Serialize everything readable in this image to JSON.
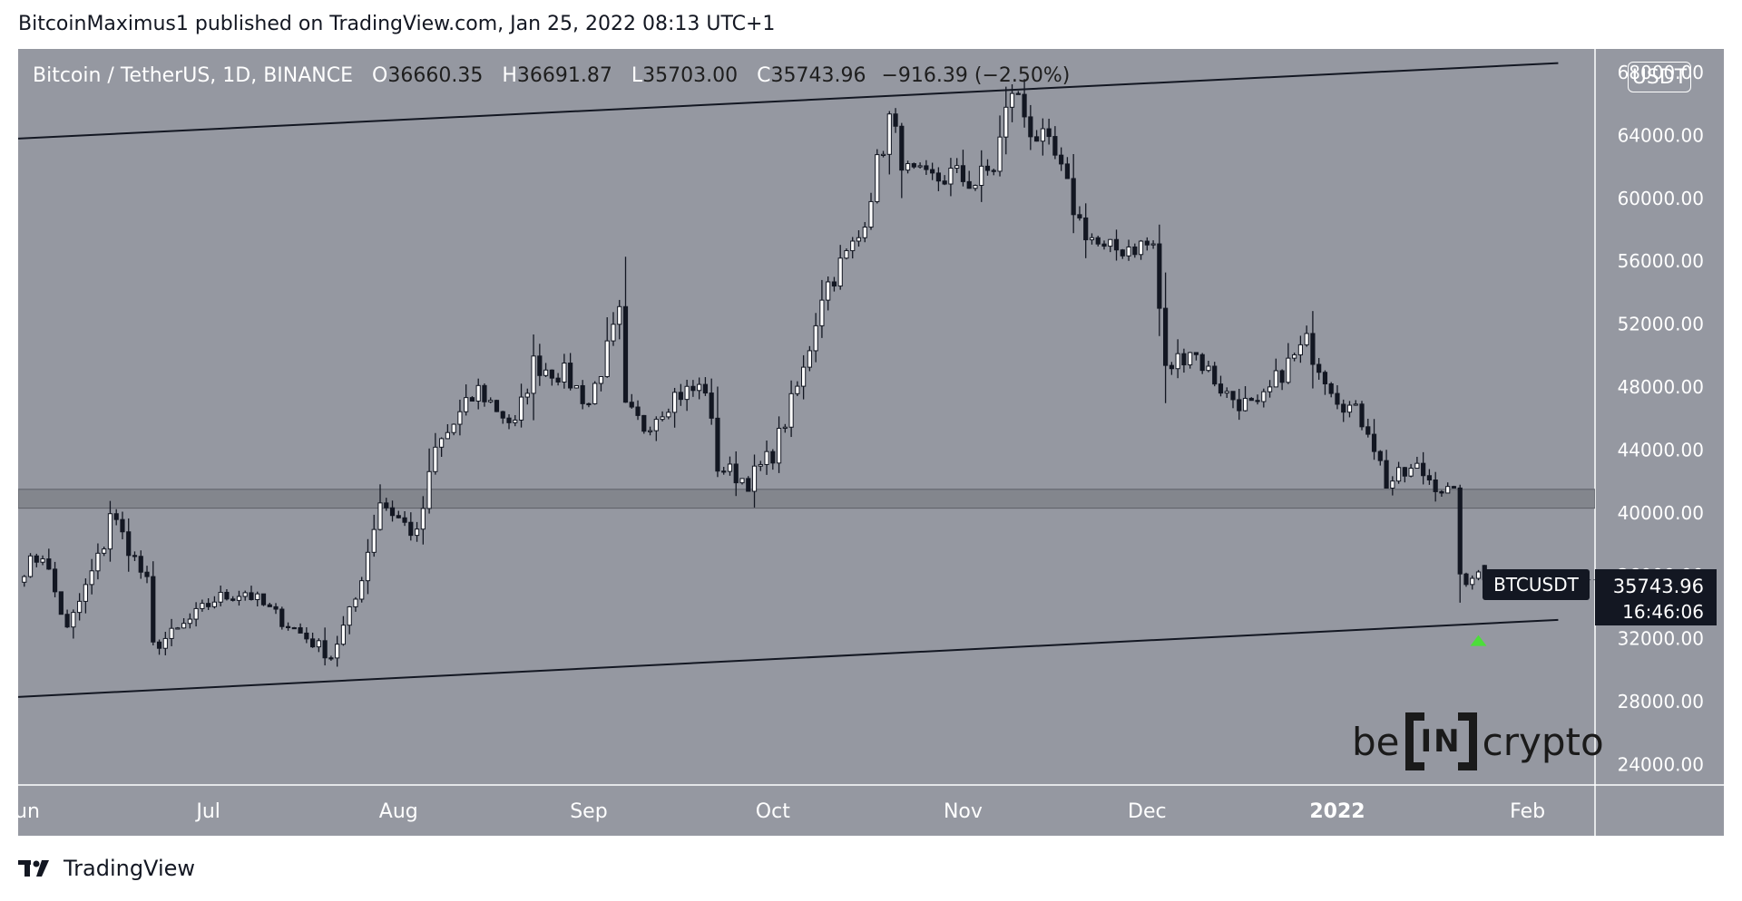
{
  "header": {
    "published_text": "BitcoinMaximus1 published on TradingView.com, Jan 25, 2022 08:13 UTC+1"
  },
  "legend": {
    "symbol_text": "Bitcoin / TetherUS, 1D, BINANCE",
    "open_label": "O",
    "open": "36660.35",
    "high_label": "H",
    "high": "36691.87",
    "low_label": "L",
    "low": "35703.00",
    "close_label": "C",
    "close": "35743.96",
    "change": "−916.39 (−2.50%)"
  },
  "currency_badge": "USDT",
  "price_tag": {
    "symbol": "BTCUSDT",
    "price": "35743.96",
    "countdown": "16:46:06"
  },
  "watermark": {
    "left": "be",
    "middle": "IN",
    "right": "crypto"
  },
  "footer": {
    "brand": "TradingView"
  },
  "colors": {
    "chart_bg": "#9598a1",
    "up_candle": "#ffffff",
    "down_candle": "#131722",
    "marker": "#4cde3a",
    "support_zone": "#808289"
  },
  "chart_data": {
    "type": "candlestick",
    "title": "Bitcoin / TetherUS, 1D, BINANCE",
    "x_ticks": [
      {
        "label": "Jun",
        "date": "2021-06-01"
      },
      {
        "label": "Jul",
        "date": "2021-07-01"
      },
      {
        "label": "Aug",
        "date": "2021-08-01"
      },
      {
        "label": "Sep",
        "date": "2021-09-01"
      },
      {
        "label": "Oct",
        "date": "2021-10-01"
      },
      {
        "label": "Nov",
        "date": "2021-11-01"
      },
      {
        "label": "Dec",
        "date": "2021-12-01"
      },
      {
        "label": "2022",
        "date": "2022-01-01"
      },
      {
        "label": "Feb",
        "date": "2022-02-01"
      }
    ],
    "y_ticks": [
      24000,
      28000,
      32000,
      36000,
      40000,
      44000,
      48000,
      52000,
      56000,
      60000,
      64000,
      68000
    ],
    "y_tick_labels": [
      "24000.00",
      "28000.00",
      "32000.00",
      "36000.00",
      "40000.00",
      "44000.00",
      "48000.00",
      "52000.00",
      "56000.00",
      "60000.00",
      "64000.00",
      "68000.00"
    ],
    "ylim": [
      22700,
      69500
    ],
    "xlim": [
      "2021-05-31",
      "2022-02-12"
    ],
    "support_zone": {
      "low": 40300,
      "high": 41500
    },
    "channel_upper": [
      {
        "date": "2021-05-31",
        "price": 63800
      },
      {
        "date": "2022-02-06",
        "price": 68600
      }
    ],
    "channel_lower": [
      {
        "date": "2021-05-31",
        "price": 28300
      },
      {
        "date": "2022-02-06",
        "price": 33200
      }
    ],
    "marker": {
      "date": "2022-01-24",
      "price": 32000,
      "shape": "up-arrow"
    },
    "price_line": 35743.96,
    "pivots": [
      {
        "date": "2021-06-01",
        "price": 36500
      },
      {
        "date": "2021-06-04",
        "price": 37400
      },
      {
        "date": "2021-06-08",
        "price": 32500
      },
      {
        "date": "2021-06-14",
        "price": 38000
      },
      {
        "date": "2021-06-15",
        "price": 40100
      },
      {
        "date": "2021-06-21",
        "price": 35500
      },
      {
        "date": "2021-06-22",
        "price": 31500
      },
      {
        "date": "2021-06-26",
        "price": 32500
      },
      {
        "date": "2021-07-02",
        "price": 34500
      },
      {
        "date": "2021-07-07",
        "price": 35000
      },
      {
        "date": "2021-07-12",
        "price": 33500
      },
      {
        "date": "2021-07-20",
        "price": 31200
      },
      {
        "date": "2021-07-21",
        "price": 30900
      },
      {
        "date": "2021-07-25",
        "price": 34500
      },
      {
        "date": "2021-07-27",
        "price": 37600
      },
      {
        "date": "2021-07-29",
        "price": 40800
      },
      {
        "date": "2021-08-04",
        "price": 38500
      },
      {
        "date": "2021-08-07",
        "price": 44000
      },
      {
        "date": "2021-08-14",
        "price": 47800
      },
      {
        "date": "2021-08-20",
        "price": 45500
      },
      {
        "date": "2021-08-23",
        "price": 49500
      },
      {
        "date": "2021-08-28",
        "price": 48800
      },
      {
        "date": "2021-09-01",
        "price": 47000
      },
      {
        "date": "2021-09-06",
        "price": 52500
      },
      {
        "date": "2021-09-07",
        "price": 46500
      },
      {
        "date": "2021-09-10",
        "price": 45500
      },
      {
        "date": "2021-09-15",
        "price": 47500
      },
      {
        "date": "2021-09-20",
        "price": 48000
      },
      {
        "date": "2021-09-22",
        "price": 43000
      },
      {
        "date": "2021-09-27",
        "price": 42000
      },
      {
        "date": "2021-10-01",
        "price": 43800
      },
      {
        "date": "2021-10-06",
        "price": 49000
      },
      {
        "date": "2021-10-09",
        "price": 54000
      },
      {
        "date": "2021-10-15",
        "price": 57500
      },
      {
        "date": "2021-10-20",
        "price": 65000
      },
      {
        "date": "2021-10-23",
        "price": 61500
      },
      {
        "date": "2021-10-26",
        "price": 61000
      },
      {
        "date": "2021-10-30",
        "price": 61500
      },
      {
        "date": "2021-11-03",
        "price": 61000
      },
      {
        "date": "2021-11-06",
        "price": 62000
      },
      {
        "date": "2021-11-09",
        "price": 67000
      },
      {
        "date": "2021-11-12",
        "price": 64500
      },
      {
        "date": "2021-11-16",
        "price": 62500
      },
      {
        "date": "2021-11-20",
        "price": 58500
      },
      {
        "date": "2021-11-24",
        "price": 56500
      },
      {
        "date": "2021-11-28",
        "price": 57000
      },
      {
        "date": "2021-12-02",
        "price": 57000
      },
      {
        "date": "2021-12-04",
        "price": 49000
      },
      {
        "date": "2021-12-08",
        "price": 50500
      },
      {
        "date": "2021-12-14",
        "price": 47500
      },
      {
        "date": "2021-12-19",
        "price": 46500
      },
      {
        "date": "2021-12-23",
        "price": 49000
      },
      {
        "date": "2021-12-27",
        "price": 50800
      },
      {
        "date": "2022-01-01",
        "price": 47500
      },
      {
        "date": "2022-01-06",
        "price": 45500
      },
      {
        "date": "2022-01-09",
        "price": 41900
      },
      {
        "date": "2022-01-14",
        "price": 42800
      },
      {
        "date": "2022-01-20",
        "price": 41000
      },
      {
        "date": "2022-01-21",
        "price": 36500
      },
      {
        "date": "2022-01-22",
        "price": 35000
      },
      {
        "date": "2022-01-24",
        "price": 36660.35
      }
    ],
    "last_candle": {
      "date": "2022-01-25",
      "open": 36660.35,
      "high": 36691.87,
      "low": 35703.0,
      "close": 35743.96
    }
  }
}
